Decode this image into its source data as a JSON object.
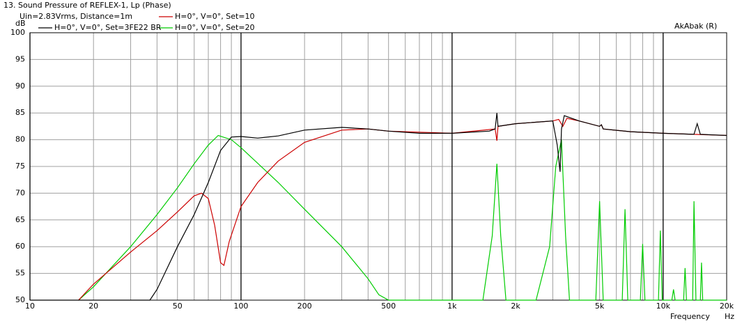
{
  "chart_data": {
    "type": "line",
    "title": "13. Sound Pressure of REFLEX-1, Lp (Phase)",
    "subtitle": "Uin=2.83Vrms, Distance=1m",
    "y_label": "dB",
    "x_label": "Frequency",
    "x_unit": "Hz",
    "software": "AkAbak (R)",
    "log_x": true,
    "grid": true,
    "xlim": [
      10,
      20000
    ],
    "ylim": [
      50,
      100
    ],
    "xticks": [
      10,
      20,
      50,
      100,
      200,
      500,
      {
        "value": 1000,
        "label": "1k"
      },
      {
        "value": 2000,
        "label": "2k"
      },
      {
        "value": 5000,
        "label": "5k"
      },
      {
        "value": 10000,
        "label": "10k"
      }
    ],
    "x_end_label": {
      "value": 20000,
      "label": "20k"
    },
    "x_minor_ticks": [
      30,
      40,
      60,
      70,
      80,
      90,
      300,
      400,
      600,
      700,
      800,
      900,
      3000,
      4000,
      6000,
      7000,
      8000,
      9000
    ],
    "yticks": [
      50,
      55,
      60,
      65,
      70,
      75,
      80,
      85,
      90,
      95,
      100
    ],
    "series": [
      {
        "name": "H=0°, V=0°, Set=3FE22 BR",
        "color": "#000000",
        "x": [
          10,
          37,
          40,
          50,
          60,
          70,
          80,
          90,
          100,
          120,
          150,
          200,
          300,
          400,
          500,
          700,
          1000,
          1500,
          1600,
          1630,
          1650,
          2000,
          3000,
          3150,
          3250,
          3300,
          3400,
          4000,
          5000,
          5100,
          5200,
          7000,
          10000,
          14000,
          14500,
          15000,
          20000
        ],
        "values": [
          50,
          50,
          52,
          60,
          66,
          72,
          78,
          80.5,
          80.6,
          80.3,
          80.7,
          81.8,
          82.3,
          82,
          81.6,
          81.2,
          81.2,
          81.6,
          82,
          85,
          82.5,
          83,
          83.5,
          79,
          74,
          82,
          84.5,
          83.5,
          82.5,
          82.8,
          82,
          81.5,
          81.2,
          81,
          83,
          81,
          80.8
        ]
      },
      {
        "name": "H=0°, V=0°, Set=10",
        "color": "#cc0000",
        "x": [
          17,
          20,
          30,
          40,
          50,
          60,
          65,
          70,
          75,
          80,
          83,
          88,
          100,
          120,
          150,
          200,
          300,
          400,
          500,
          1000,
          1600,
          1630,
          1650,
          2000,
          3000,
          3200,
          3350,
          3500,
          4000,
          5000,
          5100,
          5200,
          7000,
          10000,
          20000
        ],
        "values": [
          50,
          53,
          59,
          63,
          66.5,
          69.5,
          70,
          69,
          64,
          57,
          56.5,
          61,
          67.5,
          72,
          76,
          79.5,
          81.8,
          82,
          81.6,
          81.2,
          82,
          79.8,
          82.5,
          83,
          83.5,
          83.8,
          82.5,
          84,
          83.5,
          82.5,
          82.8,
          82,
          81.5,
          81.2,
          80.8
        ]
      },
      {
        "name": "H=0°, V=0°, Set=20",
        "color": "#00cc00",
        "x": [
          17,
          20,
          30,
          40,
          50,
          60,
          70,
          78,
          90,
          100,
          150,
          200,
          300,
          400,
          450,
          500,
          1400,
          1550,
          1630,
          1700,
          1800,
          2500,
          2900,
          3100,
          3300,
          3450,
          3600,
          4800,
          5000,
          5200,
          6400,
          6600,
          6800,
          7800,
          8000,
          8200,
          9500,
          9700,
          9900,
          11000,
          11200,
          11400,
          12500,
          12700,
          12900,
          13800,
          14000,
          14300,
          15000,
          15200,
          15400,
          20000
        ],
        "values": [
          50,
          52.5,
          60,
          66,
          71,
          75.5,
          79,
          80.8,
          80,
          78.5,
          72,
          67,
          60,
          54,
          51,
          50,
          50,
          62,
          75.5,
          62,
          50,
          50,
          60,
          75,
          80,
          62,
          50,
          50,
          68.5,
          50,
          50,
          67,
          50,
          50,
          60.5,
          50,
          50,
          63,
          50,
          50,
          52,
          50,
          50,
          56,
          50,
          50,
          68.5,
          50,
          50,
          57,
          50,
          50
        ]
      }
    ]
  }
}
